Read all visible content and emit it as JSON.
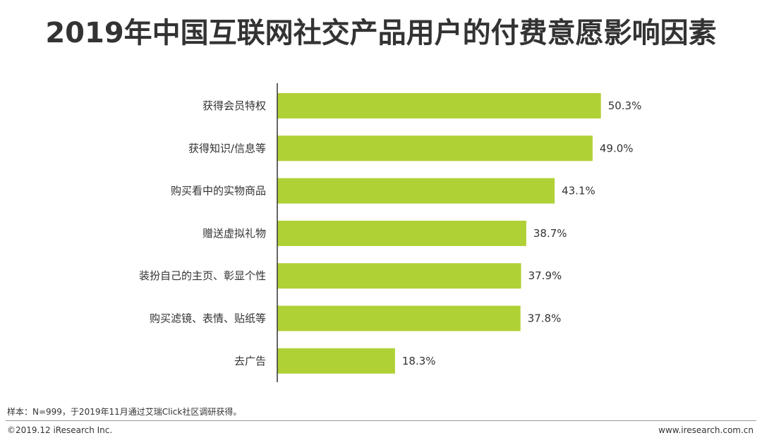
{
  "title": "2019年中国互联网社交产品用户的付费意愿影响因素",
  "chart_data": {
    "type": "bar",
    "orientation": "horizontal",
    "title": "2019年中国互联网社交产品用户的付费意愿影响因素",
    "categories": [
      "获得会员特权",
      "获得知识/信息等",
      "购买看中的实物商品",
      "赠送虚拟礼物",
      "装扮自己的主页、彰显个性",
      "购买滤镜、表情、贴纸等",
      "去广告"
    ],
    "values": [
      50.3,
      49.0,
      43.1,
      38.7,
      37.9,
      37.8,
      18.3
    ],
    "value_labels": [
      "50.3%",
      "49.0%",
      "43.1%",
      "38.7%",
      "37.9%",
      "37.8%",
      "18.3%"
    ],
    "xlim": [
      0,
      60
    ],
    "xlabel": "",
    "ylabel": "",
    "grid": false,
    "bar_color": "#b0d136"
  },
  "footer": {
    "note": "样本：N=999，于2019年11月通过艾瑞Click社区调研获得。",
    "copyright": "©2019.12 iResearch Inc.",
    "website": "www.iresearch.com.cn"
  }
}
